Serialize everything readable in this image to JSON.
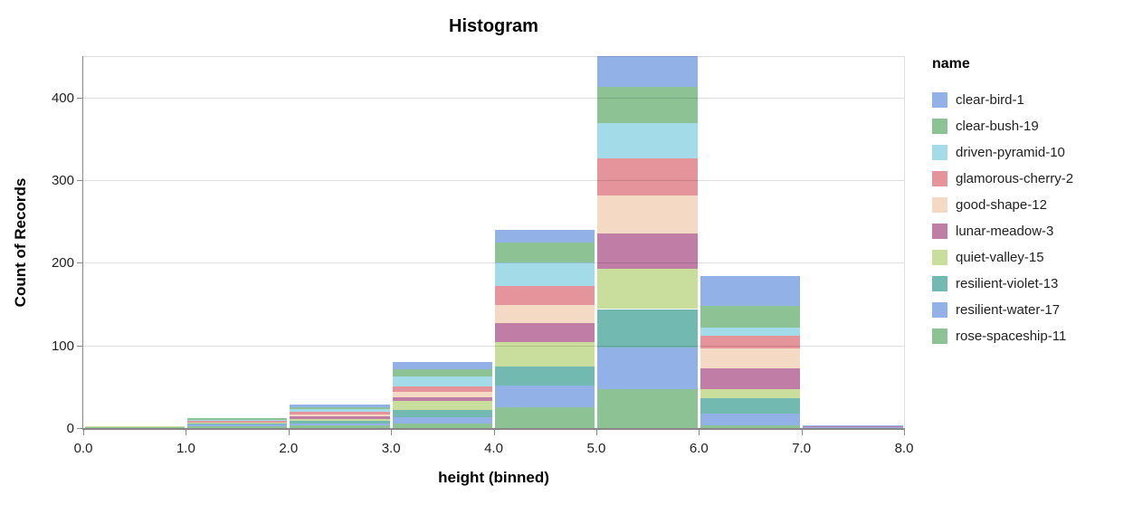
{
  "title": "Histogram",
  "axes": {
    "x": {
      "title": "height (binned)",
      "tick_labels": [
        "0.0",
        "1.0",
        "2.0",
        "3.0",
        "4.0",
        "5.0",
        "6.0",
        "7.0",
        "8.0"
      ]
    },
    "y": {
      "title": "Count of Records",
      "tick_labels": [
        "0",
        "100",
        "200",
        "300",
        "400"
      ],
      "tick_values": [
        0,
        100,
        200,
        300,
        400
      ]
    }
  },
  "legend": {
    "title": "name"
  },
  "chart_data": {
    "type": "bar",
    "subtype": "stacked-histogram",
    "title": "Histogram",
    "xlabel": "height (binned)",
    "ylabel": "Count of Records",
    "bin_edges": [
      0,
      1,
      2,
      3,
      4,
      5,
      6,
      7,
      8
    ],
    "categories": [
      "0-1",
      "1-2",
      "2-3",
      "3-4",
      "4-5",
      "5-6",
      "6-7",
      "7-8"
    ],
    "ylim": [
      0,
      450
    ],
    "grid": true,
    "legend_position": "right",
    "stack_note": "stacked bottom-to-top in reverse legend order; 5-6 bar total ~455 is clipped at ymax 450",
    "series": [
      {
        "name": "clear-bird-1",
        "color": "#92B1E7",
        "values": [
          0,
          0,
          3,
          9,
          16,
          42,
          36,
          1
        ]
      },
      {
        "name": "clear-bush-19",
        "color": "#8DC295",
        "values": [
          0,
          2,
          2,
          9,
          24,
          44,
          26,
          0
        ]
      },
      {
        "name": "driven-pyramid-10",
        "color": "#A3DCE8",
        "values": [
          0,
          1,
          3,
          12,
          28,
          43,
          10,
          0
        ]
      },
      {
        "name": "glamorous-cherry-2",
        "color": "#E6949B",
        "values": [
          0,
          2,
          4,
          6,
          23,
          45,
          16,
          0
        ]
      },
      {
        "name": "good-shape-12",
        "color": "#F4D9C4",
        "values": [
          0,
          0,
          2,
          7,
          22,
          46,
          24,
          0
        ]
      },
      {
        "name": "lunar-meadow-3",
        "color": "#C07EA6",
        "values": [
          0,
          0,
          3,
          4,
          23,
          42,
          25,
          1
        ]
      },
      {
        "name": "quiet-valley-15",
        "color": "#C9DE9D",
        "values": [
          1,
          1,
          2,
          11,
          30,
          49,
          11,
          0
        ]
      },
      {
        "name": "resilient-violet-13",
        "color": "#72B9B1",
        "values": [
          0,
          2,
          3,
          9,
          23,
          46,
          18,
          0
        ]
      },
      {
        "name": "resilient-water-17",
        "color": "#92B1E7",
        "values": [
          0,
          2,
          3,
          7,
          26,
          51,
          15,
          1
        ]
      },
      {
        "name": "rose-spaceship-11",
        "color": "#8DC295",
        "values": [
          1,
          2,
          3,
          6,
          25,
          47,
          3,
          0
        ]
      }
    ],
    "colors": {
      "gridline": "#dddddd",
      "axis": "#888888",
      "text": "#1f1f1f"
    }
  }
}
